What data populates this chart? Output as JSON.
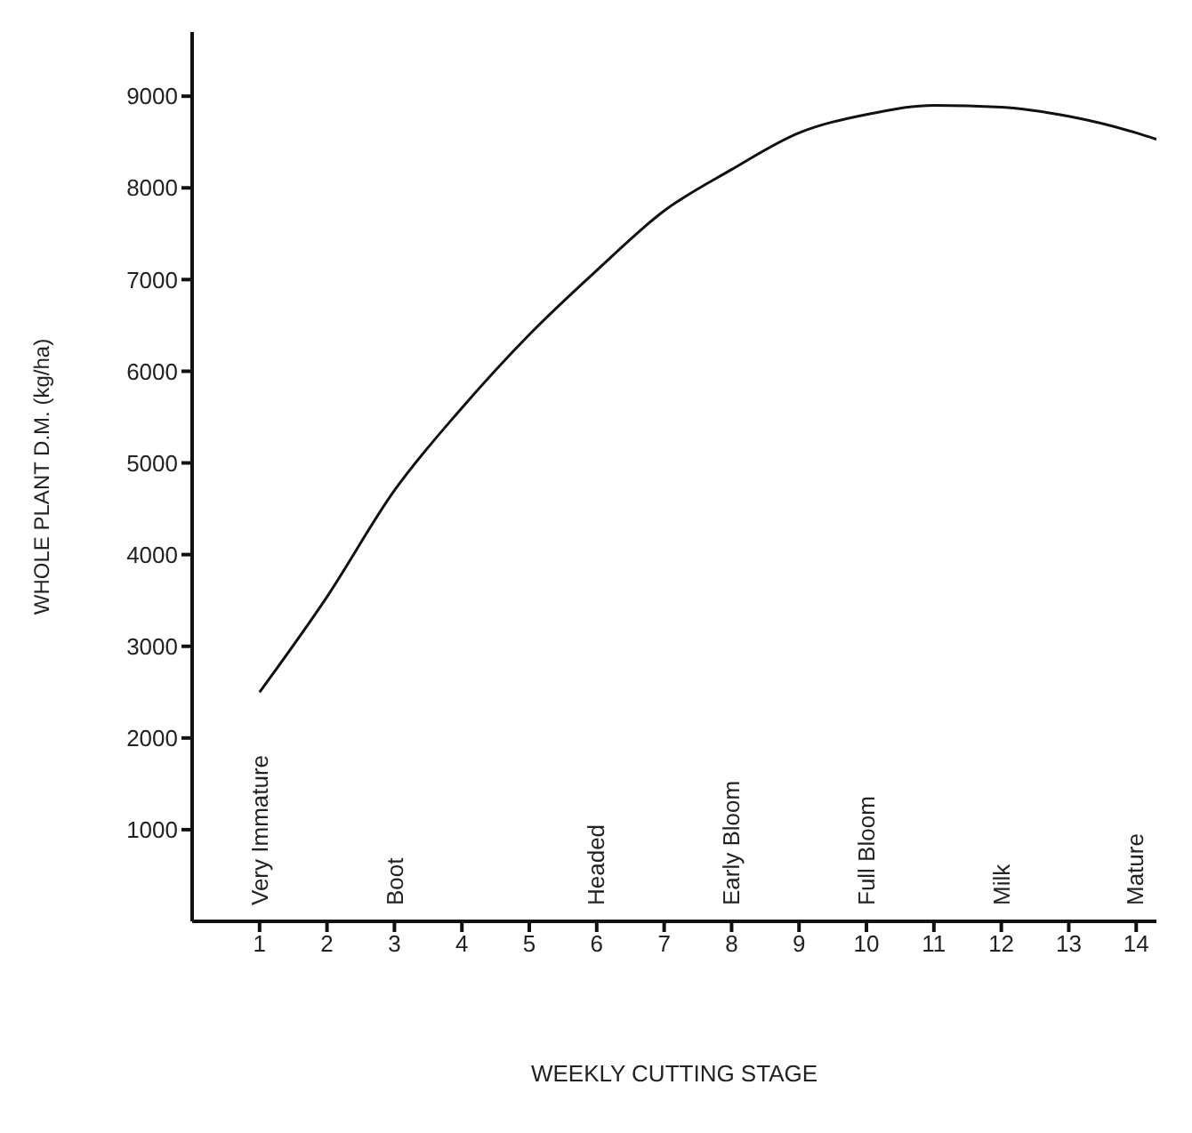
{
  "chart_data": {
    "type": "line",
    "xlabel": "WEEKLY CUTTING STAGE",
    "ylabel": "WHOLE PLANT D.M. (kg/ha)",
    "x": [
      1,
      2,
      3,
      4,
      5,
      6,
      7,
      8,
      9,
      10,
      11,
      12,
      13,
      14,
      14.3
    ],
    "series": [
      {
        "color": "#111111",
        "values": [
          2500,
          3540,
          4700,
          5600,
          6400,
          7100,
          7750,
          8200,
          8600,
          8800,
          8900,
          8880,
          8780,
          8600,
          8530
        ]
      }
    ],
    "xlim": [
      0,
      14.3
    ],
    "xticks": [
      1,
      2,
      3,
      4,
      5,
      6,
      7,
      8,
      9,
      10,
      11,
      12,
      13,
      14
    ],
    "ylim": [
      0,
      9700
    ],
    "yticks": [
      1000,
      2000,
      3000,
      4000,
      5000,
      6000,
      7000,
      8000,
      9000
    ],
    "grid": false,
    "legend": false,
    "marker": "none",
    "line_style": "solid",
    "annotations": [
      "Very Immature",
      "Boot",
      "Headed",
      "Early Bloom",
      "Full Bloom",
      "Milk",
      "Mature"
    ]
  }
}
